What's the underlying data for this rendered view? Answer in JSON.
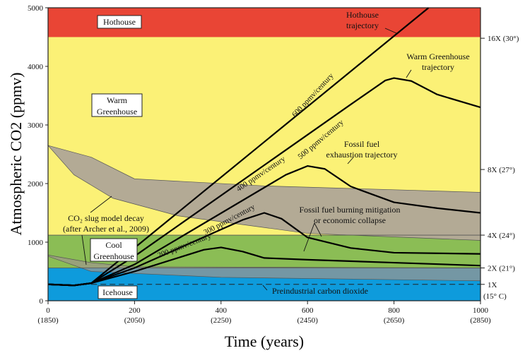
{
  "chart_data": {
    "type": "line",
    "title": "",
    "xlabel": "Time (years)",
    "ylabel": "Atmospheric CO2 (ppmv)",
    "xlim": [
      0,
      1000
    ],
    "ylim": [
      0,
      5000
    ],
    "xticks": [
      {
        "v": 0,
        "l": "0",
        "y": "(1850)"
      },
      {
        "v": 200,
        "l": "200",
        "y": "(2050)"
      },
      {
        "v": 400,
        "l": "400",
        "y": "(2250)"
      },
      {
        "v": 600,
        "l": "600",
        "y": "(2450)"
      },
      {
        "v": 800,
        "l": "800",
        "y": "(2650)"
      },
      {
        "v": 1000,
        "l": "1000",
        "y": "(2850)"
      }
    ],
    "yticks": [
      0,
      1000,
      2000,
      3000,
      4000,
      5000
    ],
    "right_axis": [
      {
        "v": 4480,
        "l": "16X (30°)"
      },
      {
        "v": 2240,
        "l": "8X (27°)"
      },
      {
        "v": 1120,
        "l": "4X (24°)"
      },
      {
        "v": 560,
        "l": "2X (21°)"
      },
      {
        "v": 280,
        "l": "1X",
        "l2": "(15° C)"
      }
    ],
    "zones": [
      {
        "name": "Hothouse",
        "from": 4500,
        "to": 5000,
        "color": "#e94535"
      },
      {
        "name": "Warm Greenhouse",
        "from": 1120,
        "to": 4500,
        "color": "#fbf176"
      },
      {
        "name": "Cool Greenhouse",
        "from": 560,
        "to": 1120,
        "color": "#8bbd55"
      },
      {
        "name": "Icehouse",
        "from": 0,
        "to": 560,
        "color": "#0e9bdc"
      }
    ],
    "zone_labels": {
      "hothouse": "Hothouse",
      "warm1": "Warm",
      "warm2": "Greenhouse",
      "cool1": "Cool",
      "cool2": "Greenhouse",
      "ice": "Icehouse"
    },
    "slug_bands": [
      {
        "upper": [
          [
            0,
            2650
          ],
          [
            100,
            2450
          ],
          [
            200,
            2080
          ],
          [
            500,
            1960
          ],
          [
            1000,
            1850
          ]
        ],
        "lower": [
          [
            0,
            2650
          ],
          [
            60,
            2150
          ],
          [
            150,
            1750
          ],
          [
            300,
            1450
          ],
          [
            600,
            1150
          ],
          [
            1000,
            1030
          ]
        ]
      },
      {
        "upper": [
          [
            0,
            780
          ],
          [
            100,
            650
          ],
          [
            200,
            580
          ],
          [
            1000,
            560
          ]
        ],
        "lower": [
          [
            0,
            760
          ],
          [
            100,
            500
          ],
          [
            400,
            400
          ],
          [
            1000,
            340
          ]
        ]
      }
    ],
    "series": [
      {
        "name": "600 ppmv/century",
        "values": [
          [
            0,
            280
          ],
          [
            60,
            262
          ],
          [
            100,
            300
          ],
          [
            880,
            5000
          ]
        ]
      },
      {
        "name": "500 ppmv/century",
        "values": [
          [
            0,
            280
          ],
          [
            60,
            262
          ],
          [
            100,
            300
          ],
          [
            200,
            760
          ],
          [
            700,
            3350
          ],
          [
            780,
            3760
          ],
          [
            800,
            3800
          ],
          [
            840,
            3750
          ],
          [
            900,
            3520
          ],
          [
            1000,
            3300
          ]
        ]
      },
      {
        "name": "400 ppmv/century",
        "values": [
          [
            0,
            280
          ],
          [
            60,
            262
          ],
          [
            100,
            300
          ],
          [
            200,
            620
          ],
          [
            550,
            2150
          ],
          [
            600,
            2300
          ],
          [
            640,
            2250
          ],
          [
            700,
            1950
          ],
          [
            800,
            1680
          ],
          [
            900,
            1580
          ],
          [
            1000,
            1500
          ]
        ]
      },
      {
        "name": "300 ppmv/century",
        "values": [
          [
            0,
            280
          ],
          [
            60,
            262
          ],
          [
            100,
            300
          ],
          [
            200,
            560
          ],
          [
            450,
            1380
          ],
          [
            500,
            1500
          ],
          [
            540,
            1400
          ],
          [
            600,
            1080
          ],
          [
            700,
            900
          ],
          [
            800,
            820
          ],
          [
            1000,
            800
          ]
        ]
      },
      {
        "name": "200 ppmv/century",
        "values": [
          [
            0,
            280
          ],
          [
            60,
            262
          ],
          [
            100,
            300
          ],
          [
            200,
            500
          ],
          [
            360,
            870
          ],
          [
            400,
            910
          ],
          [
            450,
            840
          ],
          [
            500,
            730
          ],
          [
            600,
            700
          ],
          [
            800,
            650
          ],
          [
            1000,
            600
          ]
        ]
      }
    ],
    "preindustrial": 280,
    "annotations": {
      "hot_traj1": "Hothouse",
      "hot_traj2": "trajectory",
      "warm_traj1": "Warm Greenhouse",
      "warm_traj2": "trajectory",
      "fossil1": "Fossil fuel",
      "fossil2": "exhaustion trajectory",
      "mit1": "Fossil fuel burning mitigation",
      "mit2": "or economic collapse",
      "slug1": "CO₂ slug model decay",
      "slug2": "(after Archer et al., 2009)",
      "pre": "Preindustrial carbon dioxide"
    }
  }
}
